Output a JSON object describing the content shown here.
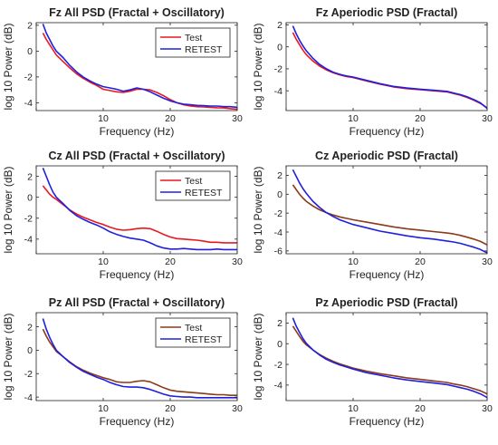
{
  "figure": {
    "background": "#ffffff"
  },
  "chart_data": [
    {
      "type": "line",
      "title": "Fz All PSD (Fractal + Oscillatory)",
      "xlabel": "Frequency (Hz)",
      "ylabel": "log 10 Power (dB)",
      "xlim": [
        0,
        30
      ],
      "ylim": [
        -4.6,
        2.2
      ],
      "xticks": [
        0,
        10,
        20,
        30
      ],
      "yticks": [
        -4,
        -2,
        0,
        2
      ],
      "grid": false,
      "legend": "top-right",
      "series": [
        {
          "name": "Test",
          "color": "#e8191f",
          "x": [
            1,
            1.5,
            2,
            2.5,
            3,
            4,
            5,
            6,
            7,
            8,
            9,
            10,
            11,
            12,
            13,
            14,
            15,
            16,
            17,
            18,
            19,
            20,
            21,
            22,
            23,
            24,
            25,
            26,
            27,
            28,
            29,
            30
          ],
          "y": [
            1.4,
            0.9,
            0.5,
            0.1,
            -0.3,
            -0.8,
            -1.3,
            -1.75,
            -2.1,
            -2.4,
            -2.65,
            -2.95,
            -3.05,
            -3.15,
            -3.2,
            -3.1,
            -2.95,
            -2.95,
            -3.0,
            -3.2,
            -3.45,
            -3.75,
            -4.0,
            -4.15,
            -4.25,
            -4.3,
            -4.32,
            -4.35,
            -4.38,
            -4.4,
            -4.45,
            -4.5
          ]
        },
        {
          "name": "RETEST",
          "color": "#1f1fe0",
          "x": [
            1,
            1.5,
            2,
            2.5,
            3,
            4,
            5,
            6,
            7,
            8,
            9,
            10,
            11,
            12,
            13,
            14,
            15,
            16,
            17,
            18,
            19,
            20,
            21,
            22,
            23,
            24,
            25,
            26,
            27,
            28,
            29,
            30
          ],
          "y": [
            2.1,
            1.4,
            0.9,
            0.4,
            0.0,
            -0.5,
            -1.1,
            -1.6,
            -2.0,
            -2.3,
            -2.55,
            -2.75,
            -2.85,
            -2.95,
            -3.1,
            -3.0,
            -2.85,
            -2.95,
            -3.15,
            -3.4,
            -3.65,
            -3.85,
            -4.0,
            -4.1,
            -4.15,
            -4.2,
            -4.22,
            -4.25,
            -4.25,
            -4.3,
            -4.3,
            -4.35
          ]
        }
      ]
    },
    {
      "type": "line",
      "title": "Fz Aperiodic PSD (Fractal)",
      "xlabel": "Frequency (Hz)",
      "ylabel": "log 10 Power (dB)",
      "xlim": [
        0,
        30
      ],
      "ylim": [
        -5.8,
        2.2
      ],
      "xticks": [
        0,
        10,
        20,
        30
      ],
      "yticks": [
        -4,
        -2,
        0,
        2
      ],
      "grid": false,
      "legend": "none",
      "series": [
        {
          "name": "",
          "color": "#e8191f",
          "x": [
            1,
            1.5,
            2,
            2.5,
            3,
            4,
            5,
            6,
            7,
            8,
            9,
            10,
            12,
            14,
            16,
            18,
            20,
            22,
            24,
            25,
            26,
            27,
            28,
            29,
            30
          ],
          "y": [
            1.3,
            0.7,
            0.2,
            -0.3,
            -0.7,
            -1.3,
            -1.75,
            -2.1,
            -2.35,
            -2.55,
            -2.7,
            -2.8,
            -3.1,
            -3.4,
            -3.65,
            -3.8,
            -3.9,
            -4.0,
            -4.1,
            -4.25,
            -4.4,
            -4.6,
            -4.85,
            -5.15,
            -5.55
          ]
        },
        {
          "name": "",
          "color": "#1f1fe0",
          "x": [
            1,
            1.5,
            2,
            2.5,
            3,
            4,
            5,
            6,
            7,
            8,
            9,
            10,
            12,
            14,
            16,
            18,
            20,
            22,
            24,
            25,
            26,
            27,
            28,
            29,
            30
          ],
          "y": [
            1.9,
            1.2,
            0.6,
            0.1,
            -0.35,
            -1.05,
            -1.6,
            -2.0,
            -2.3,
            -2.5,
            -2.65,
            -2.75,
            -3.05,
            -3.35,
            -3.6,
            -3.75,
            -3.85,
            -3.95,
            -4.05,
            -4.2,
            -4.35,
            -4.55,
            -4.8,
            -5.1,
            -5.6
          ]
        }
      ]
    },
    {
      "type": "line",
      "title": "Cz All PSD (Fractal + Oscillatory)",
      "xlabel": "Frequency (Hz)",
      "ylabel": "log 10 Power (dB)",
      "xlim": [
        0,
        30
      ],
      "ylim": [
        -5.4,
        3.0
      ],
      "xticks": [
        0,
        10,
        20,
        30
      ],
      "yticks": [
        -4,
        -2,
        0,
        2
      ],
      "grid": false,
      "legend": "top-right",
      "series": [
        {
          "name": "Test",
          "color": "#e8191f",
          "x": [
            1,
            1.5,
            2,
            2.5,
            3,
            4,
            5,
            6,
            7,
            8,
            9,
            10,
            11,
            12,
            13,
            14,
            15,
            16,
            17,
            18,
            19,
            20,
            21,
            22,
            23,
            24,
            25,
            26,
            27,
            28,
            29,
            30
          ],
          "y": [
            1.1,
            0.7,
            0.3,
            0.0,
            -0.2,
            -0.7,
            -1.2,
            -1.6,
            -1.9,
            -2.15,
            -2.4,
            -2.6,
            -2.85,
            -3.05,
            -3.15,
            -3.1,
            -3.0,
            -2.95,
            -3.0,
            -3.25,
            -3.55,
            -3.8,
            -3.95,
            -4.0,
            -4.05,
            -4.1,
            -4.2,
            -4.3,
            -4.3,
            -4.35,
            -4.35,
            -4.35
          ]
        },
        {
          "name": "RETEST",
          "color": "#1f1fe0",
          "x": [
            1,
            1.5,
            2,
            2.5,
            3,
            4,
            5,
            6,
            7,
            8,
            9,
            10,
            11,
            12,
            13,
            14,
            15,
            16,
            17,
            18,
            19,
            20,
            21,
            22,
            23,
            24,
            25,
            26,
            27,
            28,
            29,
            30
          ],
          "y": [
            2.8,
            2.0,
            1.2,
            0.5,
            0.0,
            -0.6,
            -1.25,
            -1.75,
            -2.1,
            -2.4,
            -2.65,
            -2.95,
            -3.3,
            -3.55,
            -3.75,
            -3.9,
            -4.0,
            -4.1,
            -4.35,
            -4.65,
            -4.85,
            -4.95,
            -4.95,
            -4.9,
            -4.95,
            -5.0,
            -5.0,
            -5.0,
            -4.95,
            -5.0,
            -5.0,
            -5.0
          ]
        }
      ]
    },
    {
      "type": "line",
      "title": "Cz Aperiodic PSD (Fractal)",
      "xlabel": "Frequency (Hz)",
      "ylabel": "log 10 Power (dB)",
      "xlim": [
        0,
        30
      ],
      "ylim": [
        -6.3,
        3.0
      ],
      "xticks": [
        0,
        10,
        20,
        30
      ],
      "yticks": [
        -6,
        -4,
        -2,
        0,
        2
      ],
      "grid": false,
      "legend": "none",
      "series": [
        {
          "name": "",
          "color": "#8b3a1a",
          "x": [
            1,
            1.5,
            2,
            2.5,
            3,
            4,
            5,
            6,
            7,
            8,
            9,
            10,
            12,
            14,
            16,
            18,
            20,
            22,
            24,
            25,
            26,
            27,
            28,
            29,
            30
          ],
          "y": [
            1.0,
            0.5,
            0.0,
            -0.4,
            -0.75,
            -1.25,
            -1.65,
            -1.95,
            -2.2,
            -2.4,
            -2.55,
            -2.7,
            -2.95,
            -3.2,
            -3.45,
            -3.65,
            -3.8,
            -3.95,
            -4.1,
            -4.2,
            -4.35,
            -4.55,
            -4.75,
            -5.0,
            -5.35
          ]
        },
        {
          "name": "",
          "color": "#1f1fe0",
          "x": [
            1,
            1.5,
            2,
            2.5,
            3,
            4,
            5,
            6,
            7,
            8,
            9,
            10,
            12,
            14,
            16,
            18,
            20,
            22,
            24,
            25,
            26,
            27,
            28,
            29,
            30
          ],
          "y": [
            2.6,
            1.9,
            1.2,
            0.6,
            0.1,
            -0.75,
            -1.4,
            -1.95,
            -2.35,
            -2.7,
            -2.95,
            -3.2,
            -3.55,
            -3.9,
            -4.15,
            -4.4,
            -4.6,
            -4.75,
            -4.95,
            -5.05,
            -5.2,
            -5.4,
            -5.6,
            -5.85,
            -6.2
          ]
        }
      ]
    },
    {
      "type": "line",
      "title": "Pz All PSD (Fractal + Oscillatory)",
      "xlabel": "Frequency (Hz)",
      "ylabel": "log 10 Power (dB)",
      "xlim": [
        0,
        30
      ],
      "ylim": [
        -4.3,
        3.2
      ],
      "xticks": [
        0,
        10,
        20,
        30
      ],
      "yticks": [
        -4,
        -2,
        0,
        2
      ],
      "grid": false,
      "legend": "top-right",
      "series": [
        {
          "name": "Test",
          "color": "#8b3a1a",
          "x": [
            1,
            1.5,
            2,
            2.5,
            3,
            4,
            5,
            6,
            7,
            8,
            9,
            10,
            11,
            12,
            13,
            14,
            15,
            16,
            17,
            18,
            19,
            20,
            21,
            22,
            23,
            24,
            25,
            26,
            27,
            28,
            29,
            30
          ],
          "y": [
            1.8,
            1.2,
            0.7,
            0.3,
            -0.1,
            -0.55,
            -1.0,
            -1.4,
            -1.7,
            -1.95,
            -2.15,
            -2.35,
            -2.5,
            -2.7,
            -2.75,
            -2.75,
            -2.65,
            -2.6,
            -2.7,
            -2.95,
            -3.2,
            -3.4,
            -3.5,
            -3.55,
            -3.6,
            -3.65,
            -3.7,
            -3.75,
            -3.8,
            -3.8,
            -3.85,
            -3.85
          ]
        },
        {
          "name": "RETEST",
          "color": "#1f1fe0",
          "x": [
            1,
            1.5,
            2,
            2.5,
            3,
            4,
            5,
            6,
            7,
            8,
            9,
            10,
            11,
            12,
            13,
            14,
            15,
            16,
            17,
            18,
            19,
            20,
            21,
            22,
            23,
            24,
            25,
            26,
            27,
            28,
            29,
            30
          ],
          "y": [
            2.7,
            1.8,
            1.1,
            0.5,
            0.0,
            -0.55,
            -1.05,
            -1.45,
            -1.8,
            -2.05,
            -2.3,
            -2.5,
            -2.75,
            -2.95,
            -3.1,
            -3.15,
            -3.15,
            -3.2,
            -3.35,
            -3.55,
            -3.75,
            -3.9,
            -3.95,
            -4.0,
            -4.0,
            -4.05,
            -4.05,
            -4.05,
            -4.05,
            -4.05,
            -4.05,
            -4.05
          ]
        }
      ]
    },
    {
      "type": "line",
      "title": "Pz Aperiodic PSD (Fractal)",
      "xlabel": "Frequency (Hz)",
      "ylabel": "log 10 Power (dB)",
      "xlim": [
        0,
        30
      ],
      "ylim": [
        -5.5,
        3.0
      ],
      "xticks": [
        0,
        10,
        20,
        30
      ],
      "yticks": [
        -4,
        -2,
        0,
        2
      ],
      "grid": false,
      "legend": "none",
      "series": [
        {
          "name": "",
          "color": "#8b3a1a",
          "x": [
            1,
            1.5,
            2,
            2.5,
            3,
            4,
            5,
            6,
            7,
            8,
            9,
            10,
            12,
            14,
            16,
            18,
            20,
            22,
            24,
            25,
            26,
            27,
            28,
            29,
            30
          ],
          "y": [
            1.7,
            1.2,
            0.7,
            0.25,
            -0.1,
            -0.6,
            -1.05,
            -1.4,
            -1.7,
            -1.95,
            -2.15,
            -2.35,
            -2.65,
            -2.9,
            -3.1,
            -3.3,
            -3.45,
            -3.6,
            -3.75,
            -3.9,
            -4.0,
            -4.15,
            -4.35,
            -4.55,
            -4.85
          ]
        },
        {
          "name": "",
          "color": "#1f1fe0",
          "x": [
            1,
            1.5,
            2,
            2.5,
            3,
            4,
            5,
            6,
            7,
            8,
            9,
            10,
            12,
            14,
            16,
            18,
            20,
            22,
            24,
            25,
            26,
            27,
            28,
            29,
            30
          ],
          "y": [
            2.5,
            1.7,
            1.1,
            0.5,
            0.05,
            -0.6,
            -1.1,
            -1.5,
            -1.8,
            -2.05,
            -2.25,
            -2.45,
            -2.8,
            -3.05,
            -3.3,
            -3.5,
            -3.65,
            -3.8,
            -3.95,
            -4.1,
            -4.25,
            -4.4,
            -4.6,
            -4.85,
            -5.2
          ]
        }
      ]
    }
  ]
}
